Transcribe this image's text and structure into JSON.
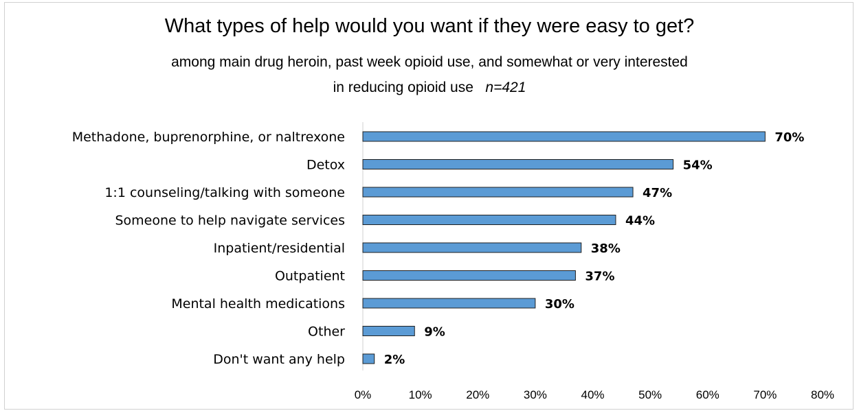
{
  "chart_data": {
    "type": "bar",
    "orientation": "horizontal",
    "title": "What types of help would you want if they were easy to get?",
    "subtitle_line1": "among main drug heroin, past week opioid use, and somewhat or very interested",
    "subtitle_line2": "in reducing opioid use",
    "subtitle_n": "n=421",
    "categories": [
      "Methadone, buprenorphine, or naltrexone",
      "Detox",
      "1:1 counseling/talking with someone",
      "Someone to help navigate services",
      "Inpatient/residential",
      "Outpatient",
      "Mental health medications",
      "Other",
      "Don't want any help"
    ],
    "values": [
      70,
      54,
      47,
      44,
      38,
      37,
      30,
      9,
      2
    ],
    "value_labels": [
      "70%",
      "54%",
      "47%",
      "44%",
      "38%",
      "37%",
      "30%",
      "9%",
      "2%"
    ],
    "xlim": [
      0,
      80
    ],
    "x_ticks": [
      "0%",
      "10%",
      "20%",
      "30%",
      "40%",
      "50%",
      "60%",
      "70%",
      "80%"
    ],
    "bar_color": "#5b9bd5",
    "grid": false,
    "legend": "none"
  }
}
